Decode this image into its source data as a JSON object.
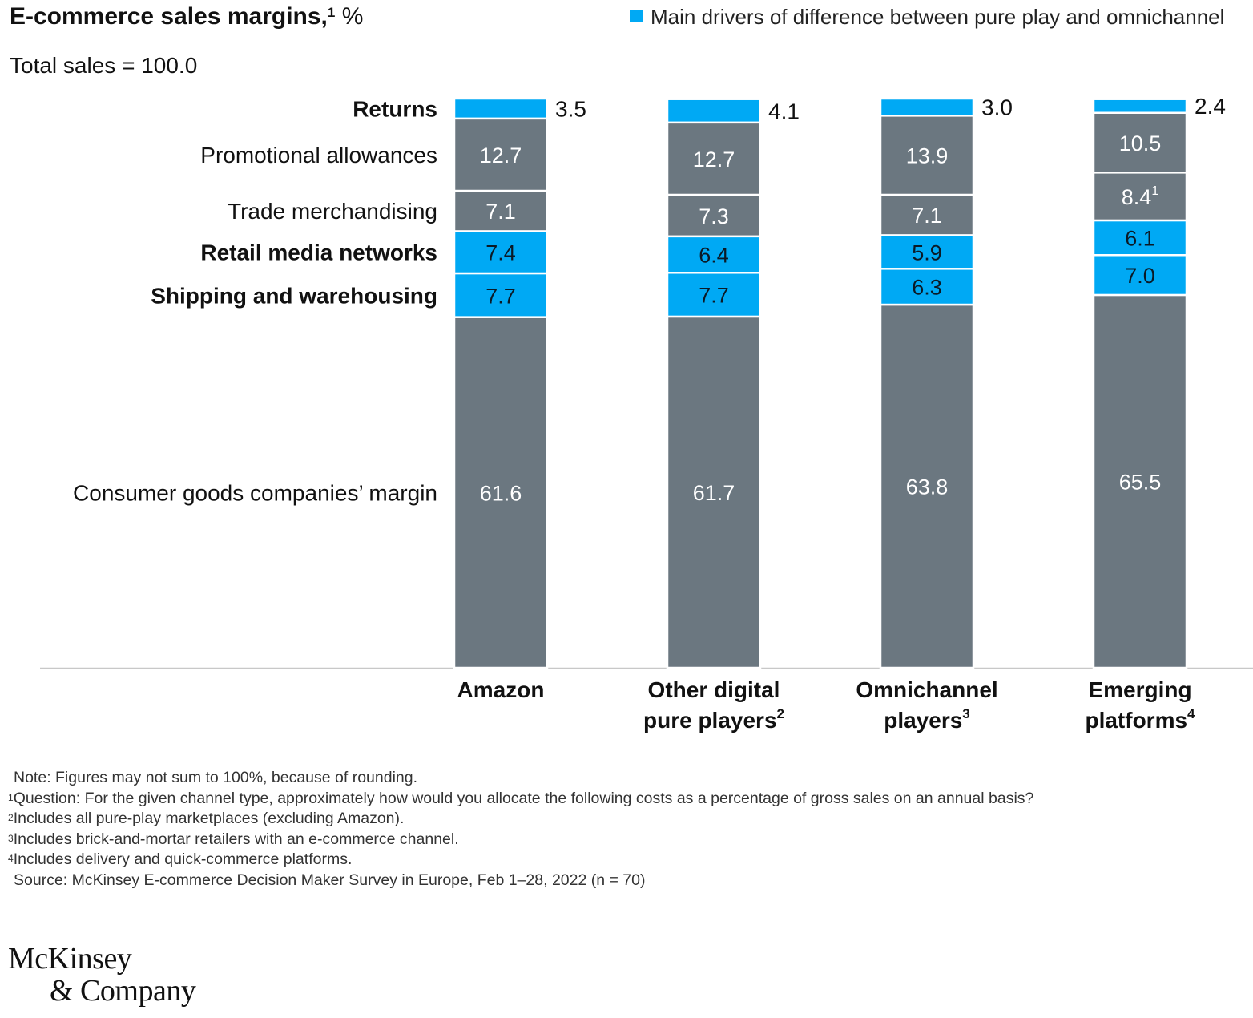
{
  "header": {
    "title": "E-commerce sales margins,",
    "title_sup": "1",
    "title_unit": "%",
    "subtitle": "Total sales = 100.0",
    "legend_label": "Main drivers of difference between pure play and omnichannel"
  },
  "colors": {
    "highlight": "#00a9f4",
    "base": "#6b7780",
    "axis": "#c8c8c8",
    "text": "#111111"
  },
  "chart_data": {
    "type": "bar",
    "stacked": true,
    "categories": [
      {
        "label": [
          "Amazon"
        ],
        "sup": ""
      },
      {
        "label": [
          "Other digital",
          "pure players"
        ],
        "sup": "2"
      },
      {
        "label": [
          "Omnichannel",
          "players"
        ],
        "sup": "3"
      },
      {
        "label": [
          "Emerging",
          "platforms"
        ],
        "sup": "4"
      }
    ],
    "series": [
      {
        "name": "Consumer goods companies’ margin",
        "highlight": false,
        "values": [
          61.6,
          61.7,
          63.8,
          65.5
        ]
      },
      {
        "name": "Shipping and warehousing",
        "highlight": true,
        "values": [
          7.7,
          7.7,
          6.3,
          7.0
        ]
      },
      {
        "name": "Retail media networks",
        "highlight": true,
        "values": [
          7.4,
          6.4,
          5.9,
          6.1
        ]
      },
      {
        "name": "Trade merchandising",
        "highlight": false,
        "values": [
          7.1,
          7.3,
          7.1,
          8.4
        ],
        "value_sups": [
          "",
          "",
          "",
          "1"
        ]
      },
      {
        "name": "Promotional allowances",
        "highlight": false,
        "values": [
          12.7,
          12.7,
          13.9,
          10.5
        ]
      },
      {
        "name": "Returns",
        "highlight": true,
        "values": [
          3.5,
          4.1,
          3.0,
          2.4
        ]
      }
    ],
    "label_outside_series": "Returns",
    "ylim": [
      0,
      100
    ]
  },
  "footnotes": {
    "note": "Note: Figures may not sum to 100%, because of rounding.",
    "items": [
      {
        "sup": "1",
        "text": "Question: For the given channel type, approximately how would you allocate the following costs as a percentage of gross sales on an annual basis?"
      },
      {
        "sup": "2",
        "text": "Includes all pure-play marketplaces (excluding Amazon)."
      },
      {
        "sup": "3",
        "text": "Includes brick-and-mortar retailers with an e-commerce channel."
      },
      {
        "sup": "4",
        "text": "Includes delivery and quick-commerce platforms."
      }
    ],
    "source": "Source: McKinsey E-commerce Decision Maker Survey in Europe, Feb 1–28, 2022 (n = 70)"
  },
  "logo": {
    "line1": "McKinsey",
    "line2": "& Company"
  }
}
